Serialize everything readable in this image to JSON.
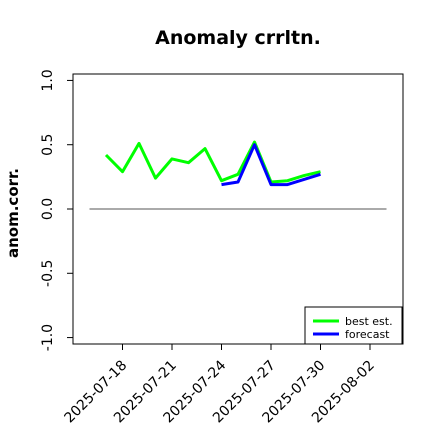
{
  "chart_data": {
    "type": "line",
    "title": "Anomaly crrltn.",
    "ylabel": "anom.corr.",
    "xlabel": "",
    "ylim": [
      -1.05,
      1.05
    ],
    "y_ticks": [
      -1.0,
      -0.5,
      0.0,
      0.5,
      1.0
    ],
    "y_tick_labels": [
      "-1.0",
      "-0.5",
      "0.0",
      "0.5",
      "1.0"
    ],
    "x_ticks": [
      "2025-07-18",
      "2025-07-21",
      "2025-07-24",
      "2025-07-27",
      "2025-07-30",
      "2025-08-02"
    ],
    "x_tick_colors": [
      "#000000",
      "#000000",
      "#228B22",
      "#000000",
      "#000000",
      "#000000"
    ],
    "x_start": "2025-07-15",
    "x_end": "2025-08-04",
    "reference_line": 0.0,
    "legend_position": "bottom-right",
    "series": [
      {
        "name": "best est.",
        "color": "#00ff00",
        "x": [
          "2025-07-17",
          "2025-07-18",
          "2025-07-19",
          "2025-07-20",
          "2025-07-21",
          "2025-07-22",
          "2025-07-23",
          "2025-07-24",
          "2025-07-25",
          "2025-07-26",
          "2025-07-27",
          "2025-07-28",
          "2025-07-29",
          "2025-07-30"
        ],
        "values": [
          0.42,
          0.29,
          0.51,
          0.24,
          0.39,
          0.36,
          0.47,
          0.22,
          0.27,
          0.52,
          0.21,
          0.22,
          0.26,
          0.29
        ]
      },
      {
        "name": "forecast",
        "color": "#0000ff",
        "x": [
          "2025-07-24",
          "2025-07-25",
          "2025-07-26",
          "2025-07-27",
          "2025-07-28",
          "2025-07-29",
          "2025-07-30"
        ],
        "values": [
          0.19,
          0.21,
          0.5,
          0.19,
          0.19,
          0.23,
          0.27
        ]
      }
    ]
  }
}
